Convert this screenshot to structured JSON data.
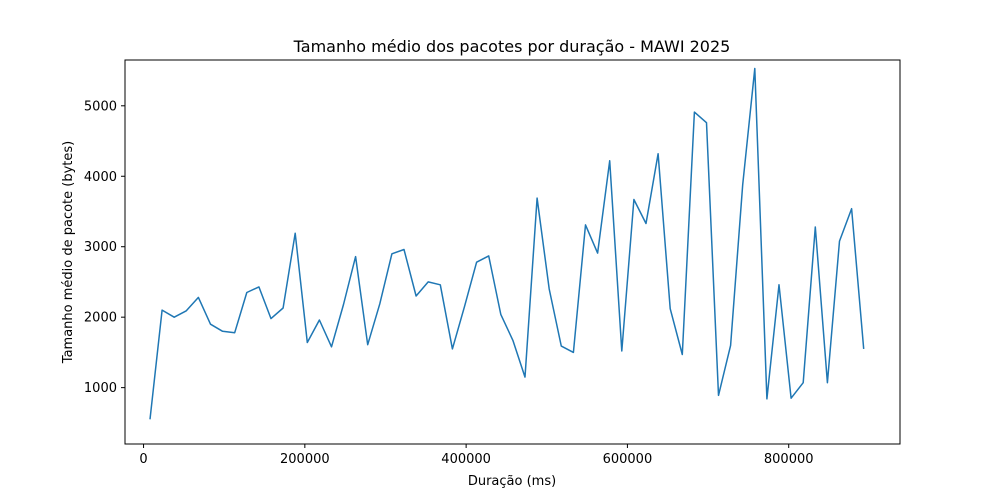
{
  "chart_data": {
    "type": "line",
    "title": "Tamanho médio dos pacotes por duração - MAWI 2025",
    "xlabel": "Duração (ms)",
    "ylabel": "Tamanho médio de pacote (bytes)",
    "xlim": [
      -23000,
      938000
    ],
    "ylim": [
      200,
      5650
    ],
    "xticks": [
      0,
      200000,
      400000,
      600000,
      800000
    ],
    "xtick_labels": [
      "0",
      "200000",
      "400000",
      "600000",
      "800000"
    ],
    "yticks": [
      1000,
      2000,
      3000,
      4000,
      5000
    ],
    "ytick_labels": [
      "1000",
      "2000",
      "3000",
      "4000",
      "5000"
    ],
    "grid": false,
    "line_color": "#1f77b4",
    "series": [
      {
        "x": [
          8000,
          23000,
          38000,
          53000,
          68000,
          83000,
          98000,
          113000,
          128000,
          143000,
          158000,
          173000,
          188000,
          203000,
          218000,
          233000,
          248000,
          263000,
          278000,
          293000,
          308000,
          323000,
          338000,
          353000,
          368000,
          383000,
          398000,
          413000,
          428000,
          443000,
          458000,
          473000,
          488000,
          503000,
          518000,
          533000,
          548000,
          563000,
          578000,
          593000,
          608000,
          623000,
          638000,
          653000,
          668000,
          683000,
          698000,
          713000,
          728000,
          743000,
          758000,
          773000,
          788000,
          803000,
          818000,
          833000,
          848000,
          863000,
          878000,
          893000
        ],
        "values": [
          550,
          2100,
          2000,
          2090,
          2280,
          1900,
          1800,
          1780,
          2350,
          2430,
          1980,
          2130,
          3190,
          1640,
          1960,
          1580,
          2180,
          2860,
          1610,
          2190,
          2900,
          2960,
          2300,
          2500,
          2460,
          1550,
          2150,
          2780,
          2870,
          2040,
          1670,
          1150,
          3690,
          2400,
          1590,
          1500,
          3310,
          2910,
          4220,
          1520,
          3670,
          3330,
          4320,
          2120,
          1470,
          4910,
          4760,
          890,
          1600,
          3880,
          5530,
          840,
          2460,
          850,
          1070,
          3280,
          1070,
          3080,
          3540,
          1550
        ]
      }
    ]
  }
}
